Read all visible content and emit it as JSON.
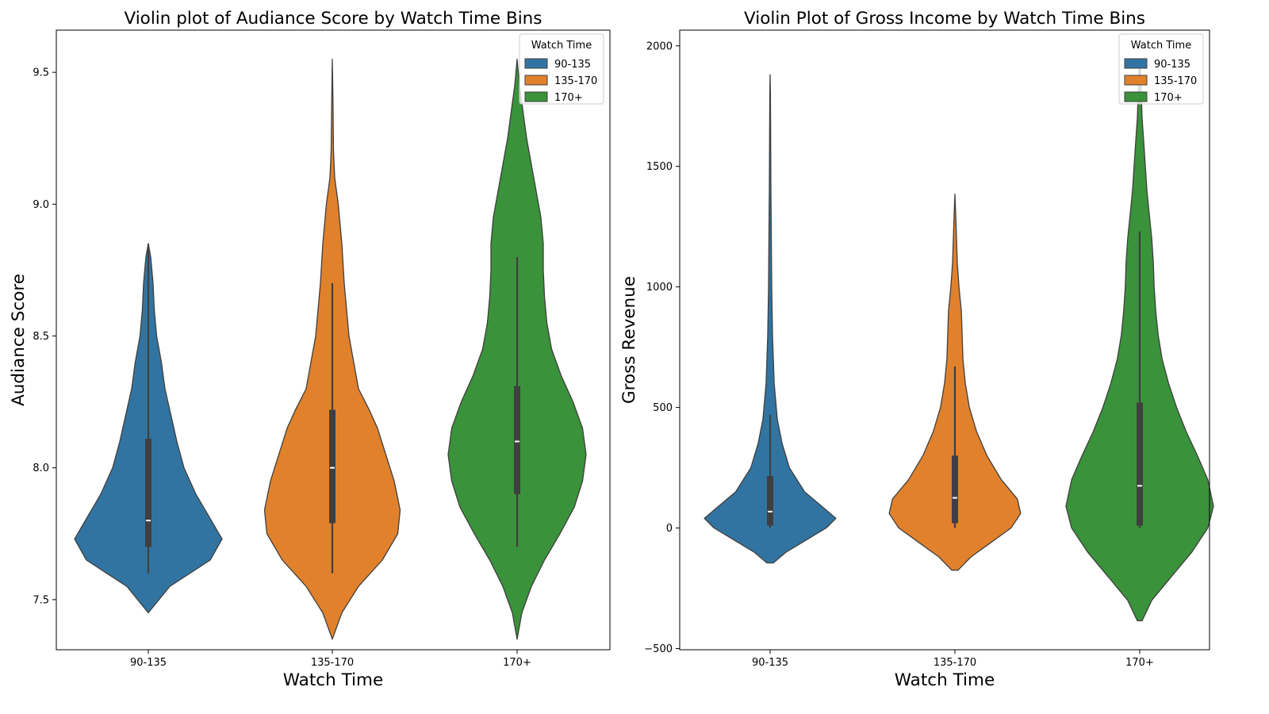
{
  "chart_data": [
    {
      "type": "violin",
      "title": "Violin plot of Audiance Score by Watch Time Bins",
      "xlabel": "Watch Time",
      "ylabel": "Audiance Score",
      "ylim": [
        7.31,
        9.66
      ],
      "yticks": [
        7.5,
        8.0,
        8.5,
        9.0,
        9.5
      ],
      "categories": [
        "90-135",
        "135-170",
        "170+"
      ],
      "legend": {
        "title": "Watch Time",
        "position": "top-right",
        "entries": [
          "90-135",
          "135-170",
          "170+"
        ]
      },
      "series": [
        {
          "name": "90-135",
          "color": "#3274a1",
          "min": 7.6,
          "q1": 7.7,
          "median": 7.8,
          "q3": 8.11,
          "max": 8.85,
          "kde_lo": 7.45,
          "kde_hi": 8.85,
          "density": [
            [
              7.45,
              0
            ],
            [
              7.55,
              0.18
            ],
            [
              7.65,
              0.52
            ],
            [
              7.73,
              0.62
            ],
            [
              7.8,
              0.53
            ],
            [
              7.9,
              0.4
            ],
            [
              8.0,
              0.3
            ],
            [
              8.1,
              0.24
            ],
            [
              8.2,
              0.19
            ],
            [
              8.3,
              0.14
            ],
            [
              8.4,
              0.11
            ],
            [
              8.5,
              0.07
            ],
            [
              8.6,
              0.05
            ],
            [
              8.7,
              0.04
            ],
            [
              8.8,
              0.02
            ],
            [
              8.85,
              0
            ]
          ]
        },
        {
          "name": "135-170",
          "color": "#e1812c",
          "min": 7.6,
          "q1": 7.79,
          "median": 8.0,
          "q3": 8.22,
          "max": 8.7,
          "kde_lo": 7.35,
          "kde_hi": 9.55,
          "density": [
            [
              7.35,
              0
            ],
            [
              7.45,
              0.08
            ],
            [
              7.55,
              0.22
            ],
            [
              7.65,
              0.42
            ],
            [
              7.75,
              0.55
            ],
            [
              7.84,
              0.57
            ],
            [
              7.95,
              0.52
            ],
            [
              8.05,
              0.45
            ],
            [
              8.15,
              0.38
            ],
            [
              8.22,
              0.31
            ],
            [
              8.3,
              0.22
            ],
            [
              8.4,
              0.18
            ],
            [
              8.5,
              0.14
            ],
            [
              8.6,
              0.12
            ],
            [
              8.7,
              0.1
            ],
            [
              8.85,
              0.08
            ],
            [
              9.0,
              0.05
            ],
            [
              9.1,
              0.02
            ],
            [
              9.2,
              0.01
            ],
            [
              9.4,
              0.005
            ],
            [
              9.55,
              0
            ]
          ]
        },
        {
          "name": "170+",
          "color": "#3a923a",
          "min": 7.7,
          "q1": 7.9,
          "median": 8.1,
          "q3": 8.31,
          "max": 8.8,
          "kde_lo": 7.35,
          "kde_hi": 9.55,
          "density": [
            [
              7.35,
              0
            ],
            [
              7.45,
              0.04
            ],
            [
              7.55,
              0.12
            ],
            [
              7.65,
              0.23
            ],
            [
              7.75,
              0.36
            ],
            [
              7.85,
              0.48
            ],
            [
              7.95,
              0.55
            ],
            [
              8.05,
              0.58
            ],
            [
              8.15,
              0.55
            ],
            [
              8.25,
              0.47
            ],
            [
              8.35,
              0.37
            ],
            [
              8.45,
              0.29
            ],
            [
              8.55,
              0.25
            ],
            [
              8.65,
              0.23
            ],
            [
              8.75,
              0.22
            ],
            [
              8.85,
              0.22
            ],
            [
              8.95,
              0.2
            ],
            [
              9.05,
              0.16
            ],
            [
              9.15,
              0.12
            ],
            [
              9.25,
              0.08
            ],
            [
              9.35,
              0.05
            ],
            [
              9.45,
              0.02
            ],
            [
              9.55,
              0
            ]
          ]
        }
      ]
    },
    {
      "type": "violin",
      "title": "Violin Plot of Gross Income by Watch Time Bins",
      "xlabel": "Watch Time",
      "ylabel": "Gross Revenue",
      "ylim": [
        -505,
        2065
      ],
      "yticks": [
        -500,
        0,
        500,
        1000,
        1500,
        2000
      ],
      "categories": [
        "90-135",
        "135-170",
        "170+"
      ],
      "legend": {
        "title": "Watch Time",
        "position": "top-right",
        "entries": [
          "90-135",
          "135-170",
          "170+"
        ]
      },
      "series": [
        {
          "name": "90-135",
          "color": "#3274a1",
          "min": 0,
          "q1": 10,
          "median": 68,
          "q3": 215,
          "max": 470,
          "kde_lo": -145,
          "kde_hi": 1880,
          "density": [
            [
              -145,
              0.04
            ],
            [
              -100,
              0.2
            ],
            [
              -50,
              0.45
            ],
            [
              0,
              0.7
            ],
            [
              40,
              0.82
            ],
            [
              80,
              0.68
            ],
            [
              150,
              0.43
            ],
            [
              250,
              0.24
            ],
            [
              350,
              0.15
            ],
            [
              450,
              0.09
            ],
            [
              600,
              0.05
            ],
            [
              800,
              0.03
            ],
            [
              1000,
              0.02
            ],
            [
              1200,
              0.015
            ],
            [
              1400,
              0.01
            ],
            [
              1600,
              0.007
            ],
            [
              1800,
              0.004
            ],
            [
              1880,
              0
            ]
          ]
        },
        {
          "name": "135-170",
          "color": "#e1812c",
          "min": 0,
          "q1": 20,
          "median": 125,
          "q3": 300,
          "max": 670,
          "kde_lo": -175,
          "kde_hi": 1385,
          "density": [
            [
              -175,
              0.04
            ],
            [
              -120,
              0.2
            ],
            [
              -60,
              0.45
            ],
            [
              0,
              0.7
            ],
            [
              60,
              0.82
            ],
            [
              120,
              0.78
            ],
            [
              200,
              0.58
            ],
            [
              300,
              0.4
            ],
            [
              400,
              0.27
            ],
            [
              500,
              0.18
            ],
            [
              600,
              0.13
            ],
            [
              700,
              0.1
            ],
            [
              800,
              0.09
            ],
            [
              900,
              0.08
            ],
            [
              1000,
              0.05
            ],
            [
              1100,
              0.03
            ],
            [
              1200,
              0.02
            ],
            [
              1300,
              0.01
            ],
            [
              1385,
              0
            ]
          ]
        },
        {
          "name": "170+",
          "color": "#3a923a",
          "min": 0,
          "q1": 10,
          "median": 175,
          "q3": 520,
          "max": 1230,
          "kde_lo": -385,
          "kde_hi": 1940,
          "density": [
            [
              -385,
              0.03
            ],
            [
              -300,
              0.15
            ],
            [
              -200,
              0.4
            ],
            [
              -100,
              0.65
            ],
            [
              0,
              0.85
            ],
            [
              90,
              0.92
            ],
            [
              200,
              0.85
            ],
            [
              300,
              0.72
            ],
            [
              400,
              0.58
            ],
            [
              500,
              0.46
            ],
            [
              600,
              0.36
            ],
            [
              700,
              0.28
            ],
            [
              800,
              0.23
            ],
            [
              900,
              0.2
            ],
            [
              1000,
              0.18
            ],
            [
              1100,
              0.17
            ],
            [
              1200,
              0.15
            ],
            [
              1300,
              0.12
            ],
            [
              1400,
              0.09
            ],
            [
              1500,
              0.07
            ],
            [
              1600,
              0.05
            ],
            [
              1700,
              0.03
            ],
            [
              1800,
              0.02
            ],
            [
              1900,
              0.01
            ],
            [
              1940,
              0
            ]
          ]
        }
      ]
    }
  ]
}
